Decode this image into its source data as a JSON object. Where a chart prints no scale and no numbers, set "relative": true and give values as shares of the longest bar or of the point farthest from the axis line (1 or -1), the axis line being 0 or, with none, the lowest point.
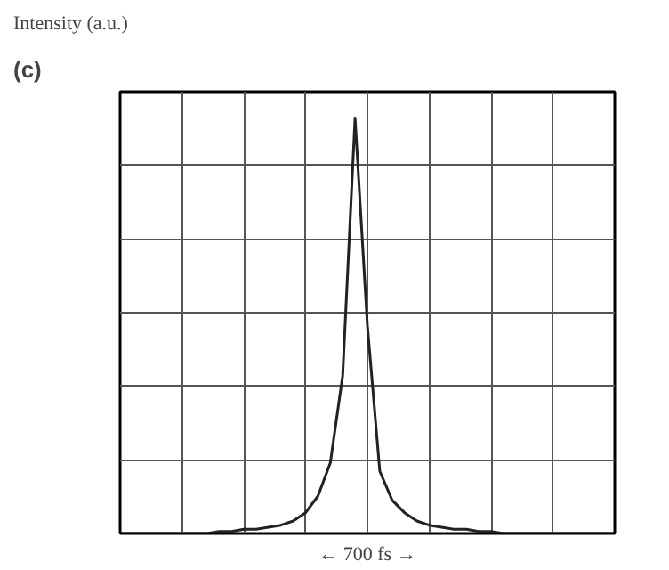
{
  "chart_data": {
    "type": "line",
    "title": "Intensity (a.u.)",
    "annotations": [
      "(c)"
    ],
    "xlabel": "← 700 fs →",
    "relative": true,
    "grid": true,
    "categories": [
      null,
      null,
      null,
      null,
      null,
      null,
      null,
      null,
      null,
      null,
      null,
      null,
      null,
      null,
      null,
      null,
      null,
      null,
      null,
      null,
      null,
      null,
      null,
      null,
      null,
      null,
      null,
      null,
      null,
      null,
      null,
      null,
      null,
      null,
      null,
      null,
      null,
      null,
      null,
      null,
      null
    ],
    "series": [
      {
        "color": "#222222",
        "values": [
          0,
          0,
          0,
          0,
          0,
          0,
          0,
          0,
          0.005,
          0.005,
          0.01,
          0.01,
          0.015,
          0.02,
          0.03,
          0.05,
          0.09,
          0.17,
          0.38,
          1.0,
          0.5,
          0.15,
          0.08,
          0.05,
          0.03,
          0.02,
          0.015,
          0.01,
          0.01,
          0.005,
          0.005,
          0,
          0,
          0,
          0,
          0,
          0,
          0,
          0,
          0,
          0
        ]
      }
    ]
  }
}
